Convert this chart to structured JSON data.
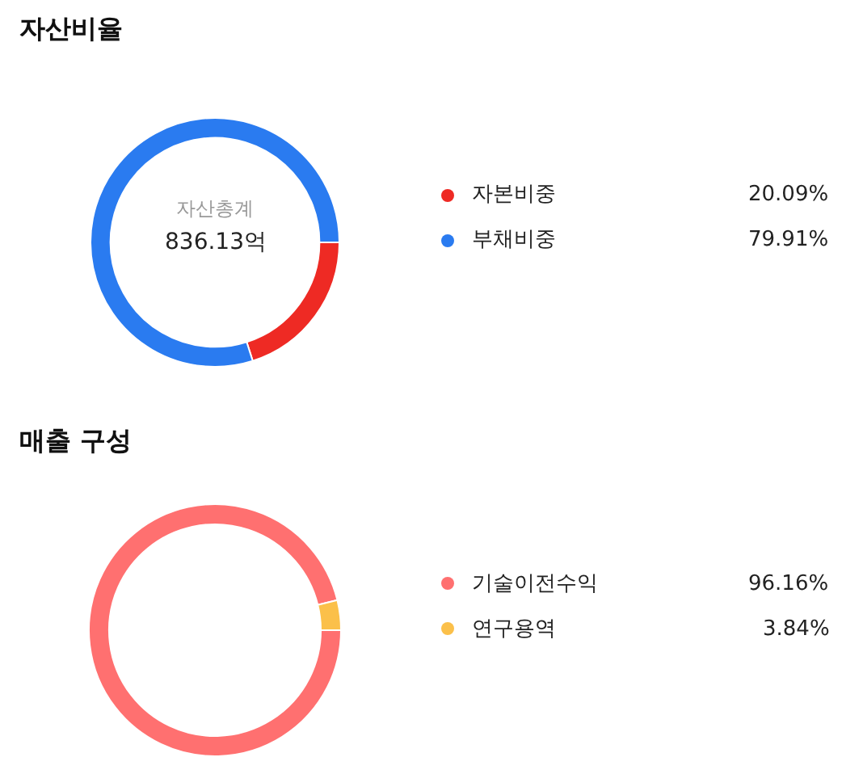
{
  "chart_data": [
    {
      "type": "donut",
      "title": "자산비율",
      "categories": [
        "자본비중",
        "부채비중"
      ],
      "values": [
        20.09,
        79.91
      ],
      "colors": [
        "#ee2a24",
        "#2a7bf0"
      ],
      "value_labels": [
        "20.09%",
        "79.91%"
      ],
      "annotations": [
        "자산총계",
        "836.13억"
      ],
      "legend": "right"
    },
    {
      "type": "donut",
      "title": "매출 구성",
      "categories": [
        "기술이전수익",
        "연구용역"
      ],
      "values": [
        96.16,
        3.84
      ],
      "colors": [
        "#ff7070",
        "#fbc04a"
      ],
      "value_labels": [
        "96.16%",
        "3.84%"
      ],
      "legend": "right"
    }
  ]
}
